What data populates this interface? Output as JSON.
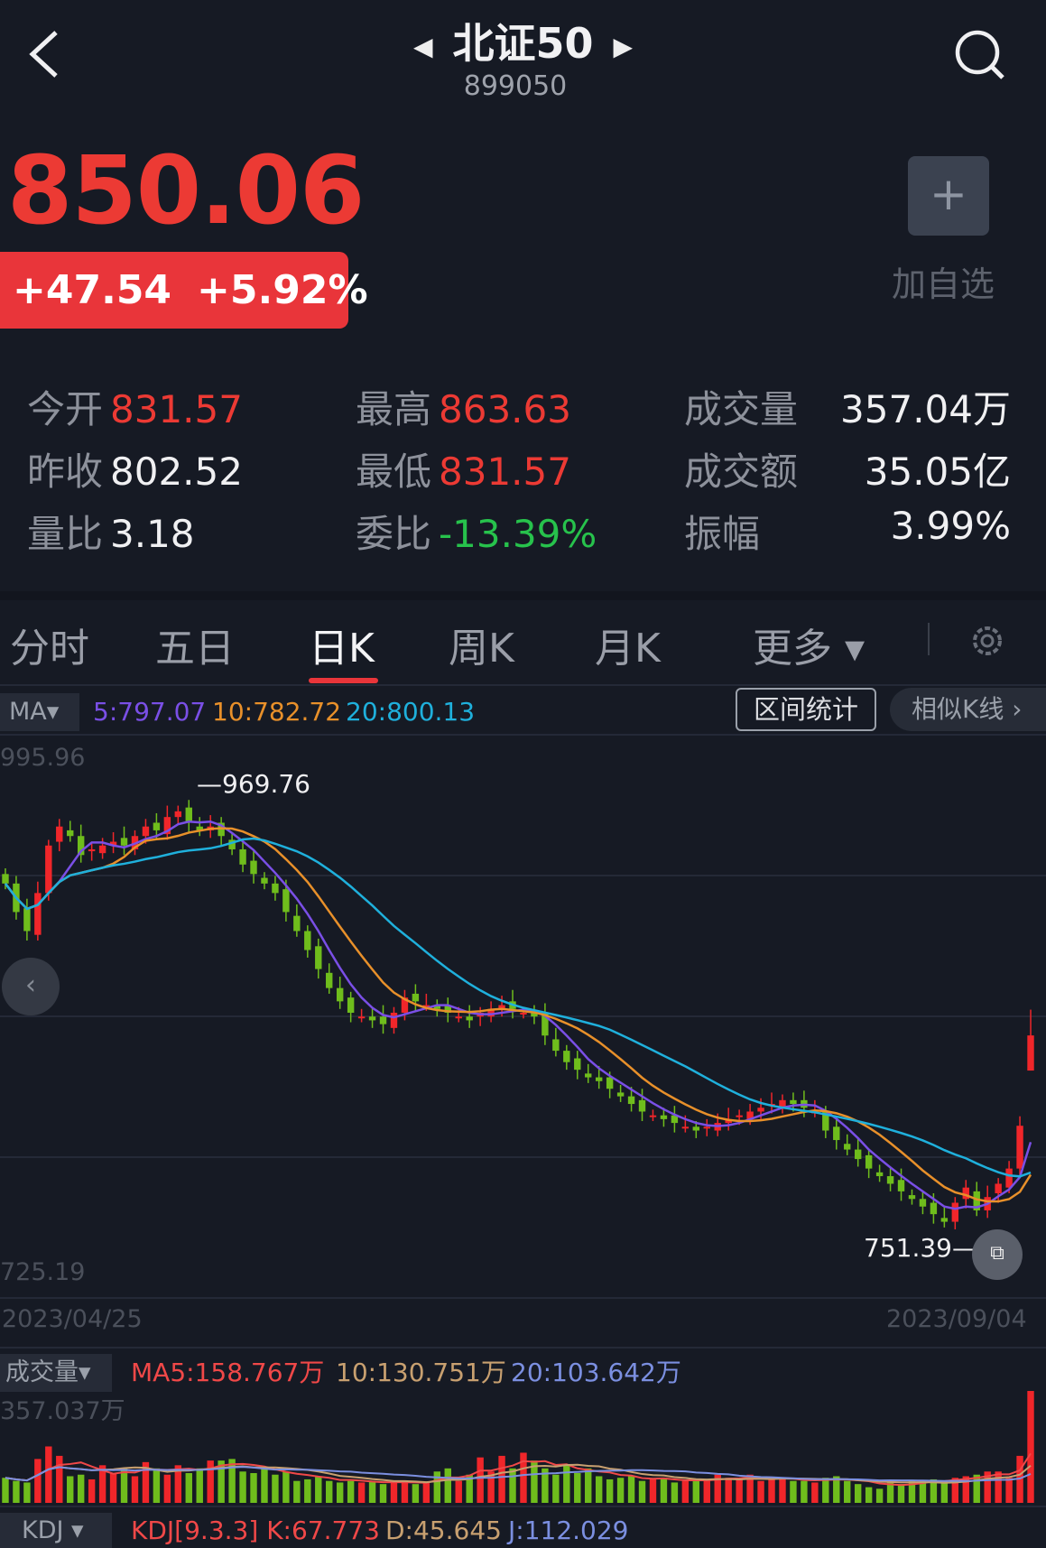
{
  "header": {
    "title": "北证50",
    "code": "899050",
    "back_icon": "chevron-left-icon",
    "search_icon": "search-icon"
  },
  "quote": {
    "price": "850.06",
    "change": "+47.54",
    "change_pct": "+5.92%",
    "add_label": "加自选",
    "add_symbol": "+"
  },
  "stats": [
    {
      "label": "今开",
      "value": "831.57",
      "tone": "red"
    },
    {
      "label": "最高",
      "value": "863.63",
      "tone": "red"
    },
    {
      "label": "成交量",
      "value": "357.04万",
      "tone": "white"
    },
    {
      "label": "昨收",
      "value": "802.52",
      "tone": "white"
    },
    {
      "label": "最低",
      "value": "831.57",
      "tone": "red"
    },
    {
      "label": "成交额",
      "value": "35.05亿",
      "tone": "white"
    },
    {
      "label": "量比",
      "value": "3.18",
      "tone": "white"
    },
    {
      "label": "委比",
      "value": "-13.39%",
      "tone": "green"
    },
    {
      "label": "振幅",
      "value": "3.99%",
      "tone": "white"
    }
  ],
  "tabs": [
    {
      "label": "分时"
    },
    {
      "label": "五日"
    },
    {
      "label": "日K",
      "active": true
    },
    {
      "label": "周K"
    },
    {
      "label": "月K"
    },
    {
      "label": "更多 ▾"
    }
  ],
  "ma_bar": {
    "selector": "MA▾",
    "ma5": "5:797.07",
    "ma10": "10:782.72",
    "ma20": "20:800.13",
    "range_stats": "区间统计",
    "similar_k": "相似K线 ›"
  },
  "colors": {
    "up": "#f0262a",
    "down": "#6fbd1c",
    "ma5": "#7a4fe6",
    "ma10": "#e8902a",
    "ma20": "#1fb0dc",
    "vma5": "#f04848",
    "vma10": "#c8a070",
    "vma20": "#7b8fe0"
  },
  "chart_data": {
    "type": "candlestick",
    "y_max_label": "995.96",
    "y_min_label": "725.19",
    "ylim": [
      725.19,
      995.96
    ],
    "high_label": "969.76",
    "low_label": "751.39",
    "start_date": "2023/04/25",
    "end_date": "2023/09/04",
    "close": [
      930,
      915,
      905,
      925,
      950,
      960,
      955,
      945,
      948,
      950,
      952,
      950,
      955,
      960,
      958,
      965,
      968,
      962,
      958,
      960,
      955,
      948,
      940,
      935,
      930,
      925,
      915,
      905,
      895,
      885,
      875,
      868,
      862,
      860,
      858,
      856,
      862,
      870,
      868,
      866,
      864,
      862,
      860,
      858,
      862,
      864,
      866,
      864,
      862,
      860,
      850,
      842,
      836,
      832,
      828,
      826,
      822,
      818,
      814,
      810,
      808,
      806,
      804,
      802,
      800,
      802,
      804,
      806,
      808,
      810,
      812,
      814,
      816,
      814,
      812,
      810,
      800,
      795,
      790,
      785,
      780,
      776,
      772,
      768,
      764,
      760,
      756,
      752,
      762,
      770,
      758,
      765,
      772,
      780,
      802.52,
      850.06
    ],
    "last_candle": {
      "open": 831.57,
      "high": 863.63,
      "low": 831.57,
      "close": 850.06
    }
  },
  "volume": {
    "selector": "成交量▾",
    "ma5": "MA5:158.767万",
    "ma10": "10:130.751万",
    "ma20": "20:103.642万",
    "max_label": "357.037万",
    "values": [
      80,
      70,
      65,
      140,
      180,
      150,
      85,
      90,
      75,
      120,
      95,
      110,
      85,
      130,
      110,
      90,
      120,
      95,
      110,
      135,
      135,
      140,
      100,
      95,
      110,
      90,
      100,
      70,
      75,
      85,
      70,
      65,
      70,
      65,
      70,
      60,
      65,
      70,
      60,
      65,
      100,
      110,
      70,
      90,
      145,
      100,
      150,
      110,
      160,
      135,
      110,
      90,
      120,
      95,
      110,
      85,
      75,
      80,
      85,
      70,
      75,
      80,
      65,
      70,
      70,
      75,
      90,
      80,
      75,
      90,
      70,
      75,
      80,
      70,
      70,
      65,
      80,
      85,
      70,
      60,
      50,
      45,
      70,
      60,
      70,
      70,
      75,
      70,
      80,
      85,
      90,
      100,
      100,
      80,
      150,
      357
    ]
  },
  "kdj": {
    "selector": "KDJ ▾",
    "params": "KDJ[9.3.3]",
    "k": "K:67.773",
    "d": "D:45.645",
    "j": "J:112.029"
  }
}
